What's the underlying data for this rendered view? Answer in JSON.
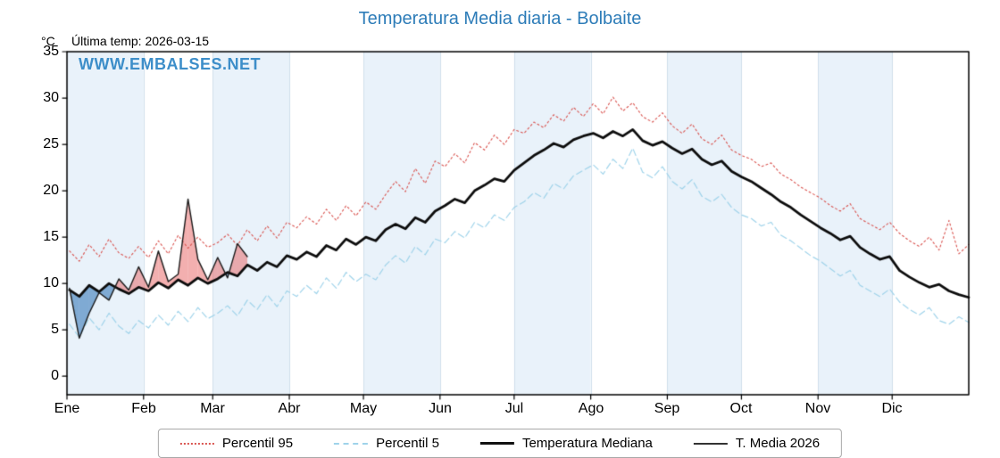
{
  "chart_data": {
    "type": "line",
    "title": "Temperatura Media diaria - Bolbaite",
    "subtitle_left": "Última temp: 2026-03-15",
    "y_axis_unit": "°C",
    "watermark": "WWW.EMBALSES.NET",
    "x_months": [
      "Ene",
      "Feb",
      "Mar",
      "Abr",
      "May",
      "Jun",
      "Jul",
      "Ago",
      "Sep",
      "Oct",
      "Nov",
      "Dic"
    ],
    "month_start_days": [
      0,
      31,
      59,
      90,
      120,
      151,
      181,
      212,
      243,
      273,
      304,
      334
    ],
    "days_in_year": 365,
    "ylim": [
      -2,
      35
    ],
    "y_ticks_top_to_bottom": [
      35,
      30,
      25,
      20,
      15,
      10,
      5,
      0
    ],
    "x_start_day": 1,
    "sample_step_days": 4,
    "band_color": "#e9f2fa",
    "grid_color": "#d0dfeb",
    "fill_above_color": "rgba(231,96,96,0.50)",
    "fill_below_color": "rgba(70,130,190,0.65)",
    "series": [
      {
        "name": "Percentil 95",
        "color": "#d9534f",
        "style": "dotted",
        "width": 1.1,
        "values": [
          13.5,
          12.4,
          14.2,
          12.9,
          14.8,
          13.3,
          12.7,
          14.0,
          12.8,
          14.6,
          13.2,
          15.2,
          13.8,
          15.0,
          13.9,
          14.4,
          15.3,
          14.1,
          15.8,
          14.6,
          16.2,
          14.9,
          16.6,
          16.0,
          17.2,
          16.4,
          18.0,
          16.8,
          18.4,
          17.3,
          18.8,
          18.0,
          19.6,
          21.0,
          19.9,
          22.4,
          20.8,
          23.2,
          22.6,
          24.0,
          23.0,
          25.2,
          24.4,
          26.0,
          25.0,
          26.6,
          26.2,
          27.4,
          26.8,
          28.2,
          27.5,
          29.0,
          28.0,
          29.4,
          28.3,
          30.1,
          28.6,
          29.5,
          28.0,
          27.4,
          28.4,
          27.0,
          26.2,
          27.2,
          25.6,
          25.0,
          26.0,
          24.4,
          23.8,
          23.4,
          22.6,
          23.0,
          21.8,
          21.2,
          20.4,
          19.8,
          19.2,
          18.4,
          17.8,
          18.6,
          17.0,
          16.4,
          15.8,
          16.6,
          15.4,
          14.6,
          14.0,
          15.0,
          13.6,
          16.8,
          13.2,
          14.2
        ]
      },
      {
        "name": "Percentil 5",
        "color": "#9fd3ea",
        "style": "dashed",
        "width": 1.2,
        "values": [
          5.6,
          4.2,
          6.3,
          5.0,
          6.8,
          5.4,
          4.6,
          6.0,
          5.2,
          6.6,
          5.5,
          7.0,
          5.9,
          7.4,
          6.2,
          6.8,
          7.6,
          6.5,
          8.2,
          7.2,
          8.8,
          7.5,
          9.2,
          8.6,
          9.8,
          8.9,
          10.6,
          9.5,
          11.2,
          10.2,
          11.0,
          10.4,
          12.0,
          13.0,
          12.2,
          14.0,
          13.1,
          14.8,
          14.4,
          15.6,
          14.9,
          16.6,
          16.0,
          17.4,
          16.8,
          18.2,
          18.8,
          19.8,
          19.2,
          20.8,
          20.2,
          21.6,
          22.2,
          22.8,
          21.8,
          23.4,
          22.4,
          24.6,
          22.0,
          21.4,
          22.6,
          21.0,
          20.2,
          21.2,
          19.4,
          18.8,
          19.6,
          18.2,
          17.4,
          17.0,
          16.2,
          16.6,
          15.2,
          14.6,
          13.8,
          13.0,
          12.4,
          11.6,
          10.8,
          11.4,
          9.8,
          9.2,
          8.6,
          9.4,
          8.0,
          7.2,
          6.6,
          7.4,
          6.0,
          5.6,
          6.4,
          5.8
        ]
      },
      {
        "name": "Temperatura Mediana",
        "color": "#0d0d0d",
        "style": "solid",
        "width": 2.8,
        "values": [
          9.3,
          8.6,
          9.8,
          9.1,
          10.0,
          9.4,
          8.9,
          9.6,
          9.2,
          10.1,
          9.5,
          10.4,
          9.8,
          10.6,
          10.0,
          10.5,
          11.2,
          10.8,
          12.0,
          11.4,
          12.3,
          11.8,
          13.0,
          12.6,
          13.4,
          12.9,
          14.1,
          13.6,
          14.8,
          14.2,
          15.0,
          14.6,
          15.8,
          16.4,
          15.9,
          17.1,
          16.6,
          17.8,
          18.4,
          19.1,
          18.7,
          20.0,
          20.6,
          21.3,
          21.0,
          22.2,
          23.0,
          23.8,
          24.4,
          25.1,
          24.7,
          25.5,
          25.9,
          26.2,
          25.7,
          26.4,
          25.9,
          26.6,
          25.4,
          24.9,
          25.3,
          24.6,
          24.0,
          24.5,
          23.4,
          22.8,
          23.2,
          22.1,
          21.5,
          21.0,
          20.3,
          19.6,
          18.8,
          18.2,
          17.4,
          16.7,
          16.0,
          15.4,
          14.7,
          15.1,
          13.9,
          13.2,
          12.6,
          12.9,
          11.4,
          10.7,
          10.1,
          9.6,
          9.9,
          9.2,
          8.8,
          8.5
        ]
      },
      {
        "name": "T. Media 2026",
        "color": "#1a1a1a",
        "style": "solid",
        "width": 1.4,
        "values": [
          9.5,
          4.1,
          6.8,
          9.0,
          8.2,
          10.5,
          9.3,
          11.8,
          9.6,
          13.5,
          10.2,
          11.0,
          19.1,
          12.6,
          10.4,
          12.8,
          10.6,
          14.3,
          12.9
        ]
      }
    ]
  }
}
